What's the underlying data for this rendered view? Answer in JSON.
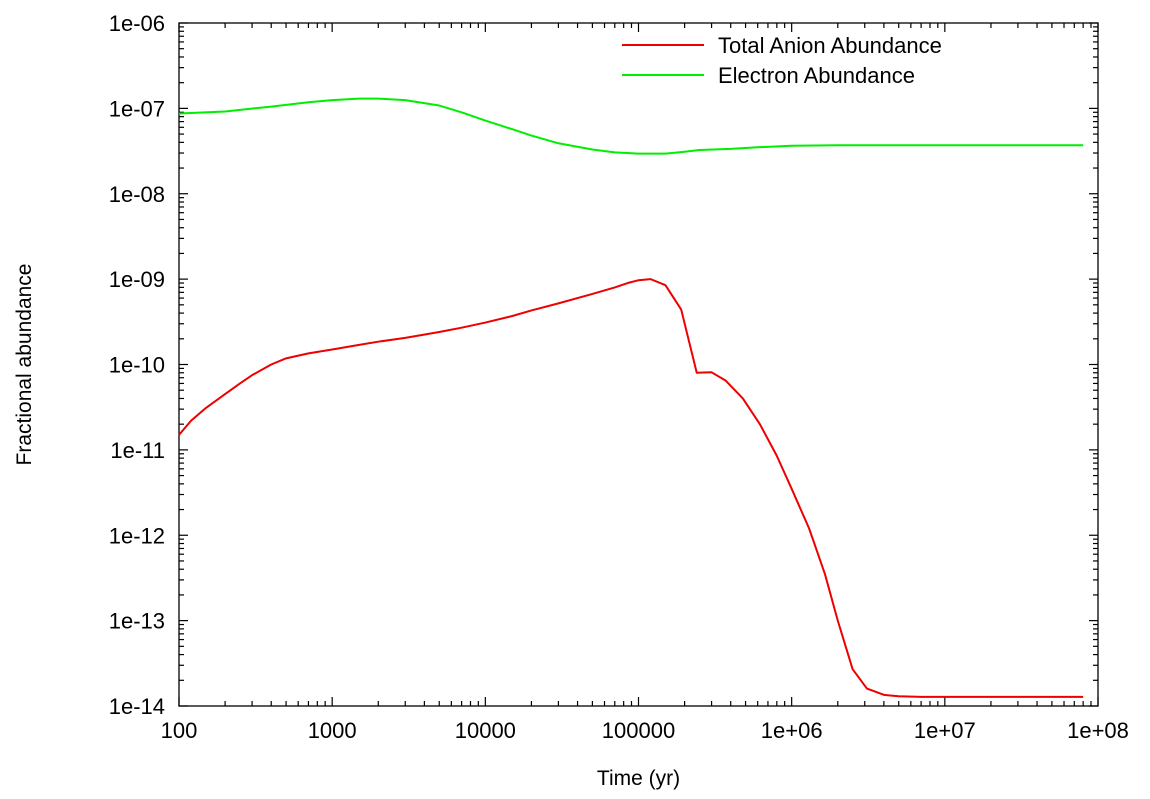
{
  "chart_data": {
    "type": "line",
    "title": "",
    "xlabel": "Time (yr)",
    "ylabel": "Fractional abundance",
    "xscale": "log",
    "yscale": "log",
    "xlim": [
      100,
      100000000
    ],
    "ylim": [
      1e-14,
      1e-06
    ],
    "grid": false,
    "legend_position": "top-right",
    "x_ticks": [
      {
        "value": 100,
        "label": "100"
      },
      {
        "value": 1000,
        "label": "1000"
      },
      {
        "value": 10000,
        "label": "10000"
      },
      {
        "value": 100000,
        "label": "100000"
      },
      {
        "value": 1000000,
        "label": "1e+06"
      },
      {
        "value": 10000000,
        "label": "1e+07"
      },
      {
        "value": 100000000,
        "label": "1e+08"
      }
    ],
    "y_ticks": [
      {
        "value": 1e-14,
        "label": "1e-14"
      },
      {
        "value": 1e-13,
        "label": "1e-13"
      },
      {
        "value": 1e-12,
        "label": "1e-12"
      },
      {
        "value": 1e-11,
        "label": "1e-11"
      },
      {
        "value": 1e-10,
        "label": "1e-10"
      },
      {
        "value": 1e-09,
        "label": "1e-09"
      },
      {
        "value": 1e-08,
        "label": "1e-08"
      },
      {
        "value": 1e-07,
        "label": "1e-07"
      },
      {
        "value": 1e-06,
        "label": "1e-06"
      }
    ],
    "series": [
      {
        "name": "Total Anion Abundance",
        "color": "#ee0000",
        "points": [
          [
            100,
            1.5e-11
          ],
          [
            120,
            2.2e-11
          ],
          [
            150,
            3.1e-11
          ],
          [
            200,
            4.5e-11
          ],
          [
            250,
            6e-11
          ],
          [
            300,
            7.5e-11
          ],
          [
            400,
            1e-10
          ],
          [
            500,
            1.18e-10
          ],
          [
            700,
            1.35e-10
          ],
          [
            1000,
            1.5e-10
          ],
          [
            1500,
            1.7e-10
          ],
          [
            2000,
            1.85e-10
          ],
          [
            3000,
            2.05e-10
          ],
          [
            5000,
            2.4e-10
          ],
          [
            7000,
            2.7e-10
          ],
          [
            10000,
            3.1e-10
          ],
          [
            15000,
            3.7e-10
          ],
          [
            20000,
            4.3e-10
          ],
          [
            30000,
            5.2e-10
          ],
          [
            50000,
            6.7e-10
          ],
          [
            70000,
            8e-10
          ],
          [
            85000,
            9e-10
          ],
          [
            100000,
            9.7e-10
          ],
          [
            120000,
            1e-09
          ],
          [
            150000,
            8.5e-10
          ],
          [
            190000,
            4.4e-10
          ],
          [
            240000,
            8e-11
          ],
          [
            300000,
            8.1e-11
          ],
          [
            370000,
            6.5e-11
          ],
          [
            480000,
            4e-11
          ],
          [
            620000,
            2e-11
          ],
          [
            800000,
            8.5e-12
          ],
          [
            1000000,
            3.5e-12
          ],
          [
            1300000,
            1.2e-12
          ],
          [
            1650000,
            3.5e-13
          ],
          [
            2000000,
            1e-13
          ],
          [
            2500000,
            2.7e-14
          ],
          [
            3100000,
            1.6e-14
          ],
          [
            4000000,
            1.35e-14
          ],
          [
            5000000,
            1.3e-14
          ],
          [
            7000000,
            1.28e-14
          ],
          [
            10000000,
            1.28e-14
          ],
          [
            80000000,
            1.28e-14
          ]
        ]
      },
      {
        "name": "Electron Abundance",
        "color": "#00ee00",
        "points": [
          [
            100,
            8.7e-08
          ],
          [
            200,
            9.2e-08
          ],
          [
            400,
            1.05e-07
          ],
          [
            700,
            1.18e-07
          ],
          [
            1000,
            1.25e-07
          ],
          [
            1500,
            1.3e-07
          ],
          [
            2000,
            1.3e-07
          ],
          [
            3000,
            1.25e-07
          ],
          [
            5000,
            1.08e-07
          ],
          [
            7000,
            9e-08
          ],
          [
            10000,
            7.2e-08
          ],
          [
            15000,
            5.7e-08
          ],
          [
            20000,
            4.8e-08
          ],
          [
            30000,
            3.9e-08
          ],
          [
            50000,
            3.3e-08
          ],
          [
            70000,
            3.05e-08
          ],
          [
            100000,
            2.95e-08
          ],
          [
            150000,
            2.95e-08
          ],
          [
            200000,
            3.1e-08
          ],
          [
            250000,
            3.25e-08
          ],
          [
            400000,
            3.35e-08
          ],
          [
            600000,
            3.5e-08
          ],
          [
            1000000,
            3.65e-08
          ],
          [
            2000000,
            3.7e-08
          ],
          [
            10000000,
            3.7e-08
          ],
          [
            80000000,
            3.7e-08
          ]
        ]
      }
    ]
  }
}
